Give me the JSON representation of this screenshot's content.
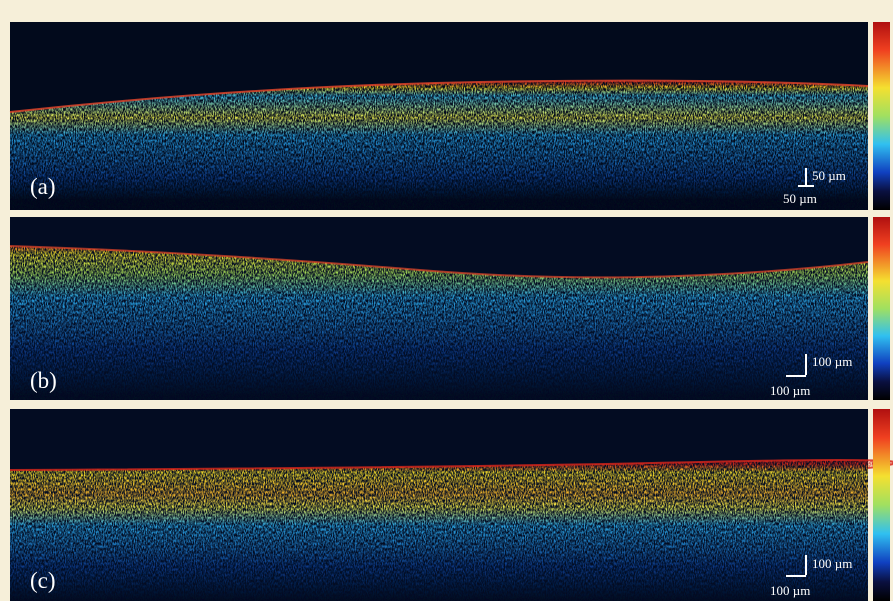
{
  "panels": [
    {
      "label": "(a)",
      "scale_vertical": "50 µm",
      "scale_horizontal": "50 µm"
    },
    {
      "label": "(b)",
      "scale_vertical": "100 µm",
      "scale_horizontal": "100 µm"
    },
    {
      "label": "(c)",
      "scale_vertical": "100 µm",
      "scale_horizontal": "100 µm"
    }
  ]
}
